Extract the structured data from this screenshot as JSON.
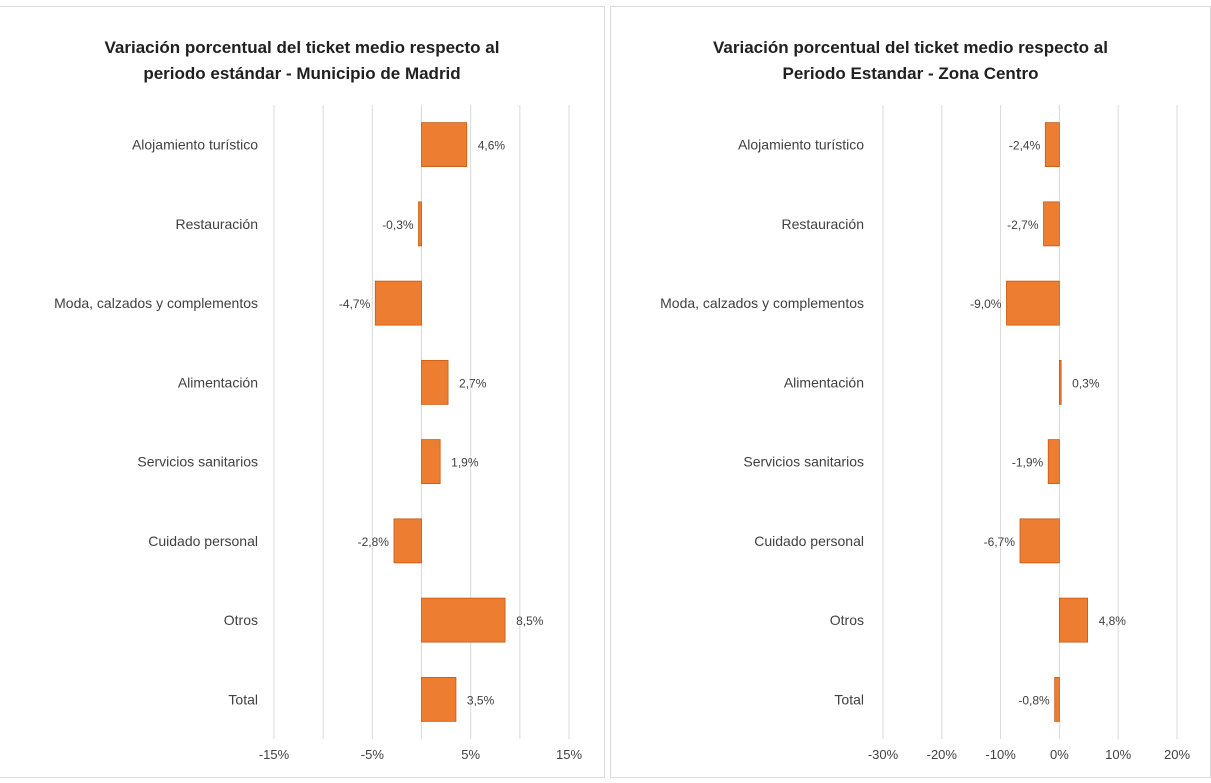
{
  "colors": {
    "bar_fill": "#ed7d31",
    "bar_stroke": "#c55a11",
    "gridline": "#d9d9d9"
  },
  "chart_data": [
    {
      "type": "bar",
      "orientation": "horizontal",
      "title": "Variación porcentual del ticket medio respecto al periodo estándar - Municipio de Madrid",
      "title_lines": [
        "Variación porcentual del ticket medio respecto al",
        "periodo estándar - Municipio de Madrid"
      ],
      "categories": [
        "Alojamiento turístico",
        "Restauración",
        "Moda, calzados y complementos",
        "Alimentación",
        "Servicios sanitarios",
        "Cuidado personal",
        "Otros",
        "Total"
      ],
      "values": [
        4.6,
        -0.3,
        -4.7,
        2.7,
        1.9,
        -2.8,
        8.5,
        3.5
      ],
      "data_labels": [
        "4,6%",
        "-0,3%",
        "-4,7%",
        "2,7%",
        "1,9%",
        "-2,8%",
        "8,5%",
        "3,5%"
      ],
      "xlim": [
        -15,
        15
      ],
      "x_ticks": [
        -15,
        -5,
        5,
        15
      ],
      "x_tick_labels": [
        "-15%",
        "-5%",
        "5%",
        "15%"
      ],
      "gridlines": [
        -15,
        -10,
        -5,
        0,
        5,
        10,
        15
      ],
      "grid": true,
      "xlabel": "",
      "ylabel": ""
    },
    {
      "type": "bar",
      "orientation": "horizontal",
      "title": "Variación porcentual del ticket medio respecto al Periodo Estandar - Zona Centro",
      "title_lines": [
        "Variación porcentual del ticket medio respecto al",
        "Periodo Estandar - Zona Centro"
      ],
      "categories": [
        "Alojamiento turístico",
        "Restauración",
        "Moda, calzados y complementos",
        "Alimentación",
        "Servicios sanitarios",
        "Cuidado personal",
        "Otros",
        "Total"
      ],
      "values": [
        -2.4,
        -2.7,
        -9.0,
        0.3,
        -1.9,
        -6.7,
        4.8,
        -0.8
      ],
      "data_labels": [
        "-2,4%",
        "-2,7%",
        "-9,0%",
        "0,3%",
        "-1,9%",
        "-6,7%",
        "4,8%",
        "-0,8%"
      ],
      "xlim": [
        -30,
        20
      ],
      "x_ticks": [
        -30,
        -20,
        -10,
        0,
        10,
        20
      ],
      "x_tick_labels": [
        "-30%",
        "-20%",
        "-10%",
        "0%",
        "10%",
        "20%"
      ],
      "gridlines": [
        -30,
        -20,
        -10,
        0,
        10,
        20
      ],
      "grid": true,
      "xlabel": "",
      "ylabel": ""
    }
  ]
}
